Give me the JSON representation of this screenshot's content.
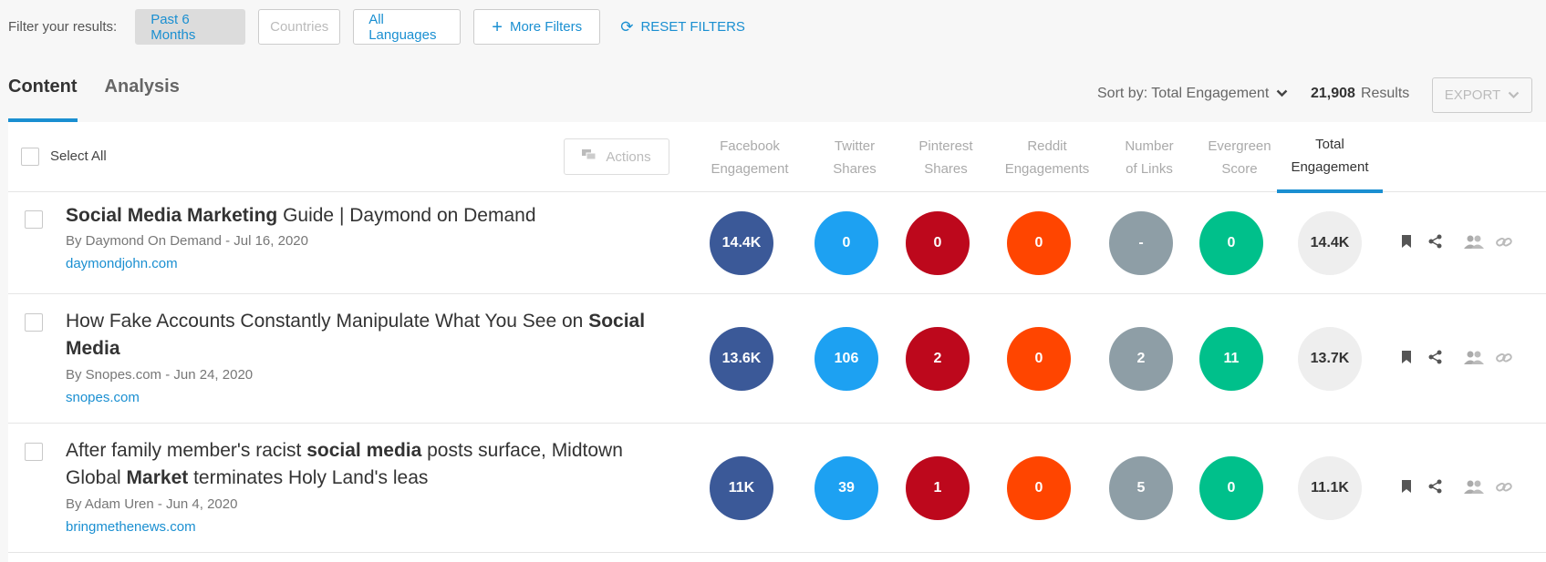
{
  "filters": {
    "label": "Filter your results:",
    "date": "Past 6 Months",
    "countries": "Countries",
    "languages": "All Languages",
    "more": "More Filters",
    "more_icon": "+",
    "reset": "RESET FILTERS",
    "reset_icon": "⟳"
  },
  "tabs": [
    {
      "label": "Content"
    },
    {
      "label": "Analysis"
    }
  ],
  "sort": {
    "label": "Sort by: Total Engagement",
    "chevron": "⌄"
  },
  "results": {
    "count": "21,908",
    "label": "Results"
  },
  "export": {
    "label": "EXPORT",
    "chevron": "⌄"
  },
  "table": {
    "select_all": "Select All",
    "actions": "Actions",
    "columns": [
      {
        "line1": "Facebook",
        "line2": "Engagement"
      },
      {
        "line1": "Twitter",
        "line2": "Shares"
      },
      {
        "line1": "Pinterest",
        "line2": "Shares"
      },
      {
        "line1": "Reddit",
        "line2": "Engagements"
      },
      {
        "line1": "Number",
        "line2": "of Links"
      },
      {
        "line1": "Evergreen",
        "line2": "Score"
      },
      {
        "line1": "Total",
        "line2": "Engagement"
      }
    ],
    "rows": [
      {
        "title_parts": [
          [
            "Social Media Marketing",
            true
          ],
          [
            " Guide | Daymond on Demand",
            false
          ]
        ],
        "byline": "By Daymond On Demand - Jul 16, 2020",
        "domain": "daymondjohn.com",
        "metrics": [
          "14.4K",
          "0",
          "0",
          "0",
          "-",
          "0",
          "14.4K"
        ]
      },
      {
        "title_parts": [
          [
            "How Fake Accounts Constantly Manipulate What You See on ",
            false
          ],
          [
            "Social Media",
            true
          ]
        ],
        "byline": "By Snopes.com - Jun 24, 2020",
        "domain": "snopes.com",
        "metrics": [
          "13.6K",
          "106",
          "2",
          "0",
          "2",
          "11",
          "13.7K"
        ]
      },
      {
        "title_parts": [
          [
            "After family member's racist ",
            false
          ],
          [
            "social media",
            true
          ],
          [
            " posts surface, Midtown Global ",
            false
          ],
          [
            "Market",
            true
          ],
          [
            " terminates Holy Land's leas",
            false
          ]
        ],
        "byline": "By Adam Uren - Jun 4, 2020",
        "domain": "bringmethenews.com",
        "metrics": [
          "11K",
          "39",
          "1",
          "0",
          "5",
          "0",
          "11.1K"
        ]
      }
    ]
  },
  "icons": {
    "bookmark": "bookmark-icon",
    "share": "share-icon",
    "people": "people-icon",
    "link": "link-icon"
  },
  "colors": {
    "accent": "#1a8fd1",
    "facebook": "#3b5998",
    "twitter": "#1da1f2",
    "pinterest": "#bd081c",
    "reddit": "#ff4500",
    "links": "#8e9ea6",
    "evergreen": "#00c08b",
    "total": "#eeeeee"
  }
}
